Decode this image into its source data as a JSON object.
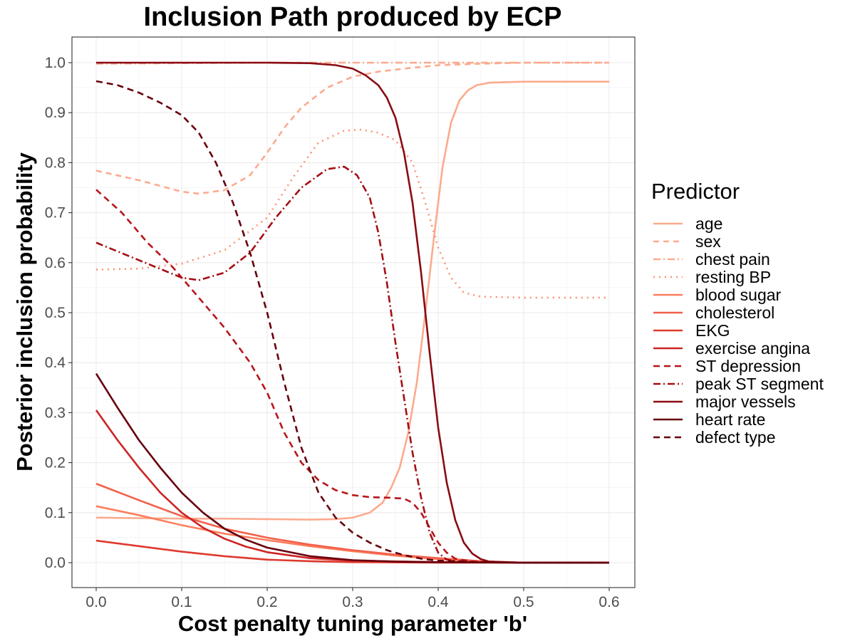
{
  "chart_data": {
    "type": "line",
    "title": "Inclusion Path produced by ECP",
    "xlabel": "Cost penalty tuning parameter 'b'",
    "ylabel": "Posterior inclusion probability",
    "xlim": [
      0,
      0.6
    ],
    "ylim": [
      0,
      1
    ],
    "x_ticks": [
      "0.0",
      "0.1",
      "0.2",
      "0.3",
      "0.4",
      "0.5",
      "0.6"
    ],
    "y_ticks": [
      "0.0",
      "0.1",
      "0.2",
      "0.3",
      "0.4",
      "0.5",
      "0.6",
      "0.7",
      "0.8",
      "0.9",
      "1.0"
    ],
    "grid": true,
    "legend_title": "Predictor",
    "legend_position": "right",
    "series": [
      {
        "name": "age",
        "color": "#fcaa8e",
        "dash": "solid",
        "points": [
          [
            0,
            0.09
          ],
          [
            0.05,
            0.089
          ],
          [
            0.1,
            0.088
          ],
          [
            0.15,
            0.088
          ],
          [
            0.2,
            0.087
          ],
          [
            0.25,
            0.086
          ],
          [
            0.28,
            0.087
          ],
          [
            0.3,
            0.09
          ],
          [
            0.32,
            0.1
          ],
          [
            0.335,
            0.12
          ],
          [
            0.345,
            0.15
          ],
          [
            0.355,
            0.19
          ],
          [
            0.365,
            0.26
          ],
          [
            0.375,
            0.36
          ],
          [
            0.385,
            0.5
          ],
          [
            0.395,
            0.65
          ],
          [
            0.405,
            0.79
          ],
          [
            0.415,
            0.88
          ],
          [
            0.425,
            0.925
          ],
          [
            0.435,
            0.945
          ],
          [
            0.445,
            0.955
          ],
          [
            0.46,
            0.96
          ],
          [
            0.5,
            0.962
          ],
          [
            0.6,
            0.962
          ]
        ]
      },
      {
        "name": "sex",
        "color": "#fcaa8e",
        "dash": "8,6",
        "points": [
          [
            0,
            0.784
          ],
          [
            0.05,
            0.765
          ],
          [
            0.1,
            0.742
          ],
          [
            0.12,
            0.738
          ],
          [
            0.15,
            0.745
          ],
          [
            0.18,
            0.775
          ],
          [
            0.2,
            0.82
          ],
          [
            0.22,
            0.87
          ],
          [
            0.24,
            0.91
          ],
          [
            0.27,
            0.95
          ],
          [
            0.3,
            0.972
          ],
          [
            0.33,
            0.982
          ],
          [
            0.36,
            0.988
          ],
          [
            0.4,
            0.995
          ],
          [
            0.45,
            0.998
          ],
          [
            0.5,
            1.0
          ],
          [
            0.6,
            1.0
          ]
        ]
      },
      {
        "name": "chest pain",
        "color": "#fcaa8e",
        "dash": "10,4,2,4",
        "points": [
          [
            0,
            0.998
          ],
          [
            0.1,
            0.999
          ],
          [
            0.2,
            1.0
          ],
          [
            0.3,
            1.0
          ],
          [
            0.4,
            1.0
          ],
          [
            0.5,
            1.0
          ],
          [
            0.6,
            1.0
          ]
        ]
      },
      {
        "name": "resting BP",
        "color": "#fc9272",
        "dash": "2,6",
        "points": [
          [
            0,
            0.586
          ],
          [
            0.05,
            0.588
          ],
          [
            0.1,
            0.598
          ],
          [
            0.15,
            0.625
          ],
          [
            0.2,
            0.69
          ],
          [
            0.23,
            0.77
          ],
          [
            0.26,
            0.84
          ],
          [
            0.29,
            0.864
          ],
          [
            0.31,
            0.866
          ],
          [
            0.33,
            0.86
          ],
          [
            0.35,
            0.845
          ],
          [
            0.37,
            0.8
          ],
          [
            0.385,
            0.72
          ],
          [
            0.4,
            0.63
          ],
          [
            0.415,
            0.57
          ],
          [
            0.43,
            0.54
          ],
          [
            0.45,
            0.532
          ],
          [
            0.5,
            0.53
          ],
          [
            0.6,
            0.53
          ]
        ]
      },
      {
        "name": "blood sugar",
        "color": "#fb7f5e",
        "dash": "solid",
        "points": [
          [
            0,
            0.113
          ],
          [
            0.05,
            0.095
          ],
          [
            0.1,
            0.075
          ],
          [
            0.15,
            0.058
          ],
          [
            0.2,
            0.045
          ],
          [
            0.25,
            0.033
          ],
          [
            0.3,
            0.023
          ],
          [
            0.35,
            0.014
          ],
          [
            0.4,
            0.007
          ],
          [
            0.45,
            0.002
          ],
          [
            0.5,
            0.0
          ],
          [
            0.6,
            0.0
          ]
        ]
      },
      {
        "name": "cholesterol",
        "color": "#f3604a",
        "dash": "solid",
        "points": [
          [
            0,
            0.158
          ],
          [
            0.05,
            0.125
          ],
          [
            0.1,
            0.093
          ],
          [
            0.15,
            0.068
          ],
          [
            0.2,
            0.05
          ],
          [
            0.25,
            0.036
          ],
          [
            0.3,
            0.025
          ],
          [
            0.35,
            0.016
          ],
          [
            0.4,
            0.009
          ],
          [
            0.45,
            0.003
          ],
          [
            0.5,
            0.0
          ],
          [
            0.6,
            0.0
          ]
        ]
      },
      {
        "name": "EKG",
        "color": "#de3a2f",
        "dash": "solid",
        "points": [
          [
            0,
            0.044
          ],
          [
            0.05,
            0.033
          ],
          [
            0.1,
            0.022
          ],
          [
            0.15,
            0.013
          ],
          [
            0.2,
            0.006
          ],
          [
            0.25,
            0.003
          ],
          [
            0.3,
            0.001
          ],
          [
            0.4,
            0.0
          ],
          [
            0.5,
            0.0
          ],
          [
            0.6,
            0.0
          ]
        ]
      },
      {
        "name": "exercise angina",
        "color": "#cc2424",
        "dash": "solid",
        "points": [
          [
            0,
            0.305
          ],
          [
            0.025,
            0.245
          ],
          [
            0.05,
            0.19
          ],
          [
            0.075,
            0.14
          ],
          [
            0.1,
            0.1
          ],
          [
            0.125,
            0.07
          ],
          [
            0.15,
            0.048
          ],
          [
            0.175,
            0.032
          ],
          [
            0.2,
            0.021
          ],
          [
            0.25,
            0.009
          ],
          [
            0.3,
            0.004
          ],
          [
            0.4,
            0.001
          ],
          [
            0.5,
            0.0
          ],
          [
            0.6,
            0.0
          ]
        ]
      },
      {
        "name": "ST depression",
        "color": "#b8151b",
        "dash": "9,6",
        "points": [
          [
            0,
            0.746
          ],
          [
            0.03,
            0.7
          ],
          [
            0.06,
            0.64
          ],
          [
            0.09,
            0.59
          ],
          [
            0.12,
            0.53
          ],
          [
            0.15,
            0.47
          ],
          [
            0.18,
            0.4
          ],
          [
            0.2,
            0.34
          ],
          [
            0.22,
            0.26
          ],
          [
            0.24,
            0.2
          ],
          [
            0.26,
            0.165
          ],
          [
            0.28,
            0.145
          ],
          [
            0.3,
            0.135
          ],
          [
            0.32,
            0.131
          ],
          [
            0.34,
            0.13
          ],
          [
            0.36,
            0.128
          ],
          [
            0.37,
            0.12
          ],
          [
            0.38,
            0.1
          ],
          [
            0.39,
            0.07
          ],
          [
            0.4,
            0.04
          ],
          [
            0.41,
            0.02
          ],
          [
            0.42,
            0.008
          ],
          [
            0.44,
            0.002
          ],
          [
            0.5,
            0.0
          ],
          [
            0.6,
            0.0
          ]
        ]
      },
      {
        "name": "peak ST segment",
        "color": "#a50f15",
        "dash": "10,4,2,4",
        "points": [
          [
            0,
            0.64
          ],
          [
            0.05,
            0.605
          ],
          [
            0.1,
            0.57
          ],
          [
            0.12,
            0.565
          ],
          [
            0.15,
            0.58
          ],
          [
            0.18,
            0.62
          ],
          [
            0.21,
            0.69
          ],
          [
            0.24,
            0.75
          ],
          [
            0.27,
            0.787
          ],
          [
            0.29,
            0.792
          ],
          [
            0.305,
            0.775
          ],
          [
            0.32,
            0.73
          ],
          [
            0.33,
            0.66
          ],
          [
            0.34,
            0.56
          ],
          [
            0.35,
            0.44
          ],
          [
            0.36,
            0.33
          ],
          [
            0.37,
            0.22
          ],
          [
            0.38,
            0.13
          ],
          [
            0.39,
            0.06
          ],
          [
            0.4,
            0.02
          ],
          [
            0.41,
            0.006
          ],
          [
            0.43,
            0.001
          ],
          [
            0.5,
            0.0
          ],
          [
            0.6,
            0.0
          ]
        ]
      },
      {
        "name": "major vessels",
        "color": "#8a0b13",
        "dash": "solid",
        "points": [
          [
            0,
            1.0
          ],
          [
            0.1,
            1.0
          ],
          [
            0.2,
            1.0
          ],
          [
            0.25,
            0.999
          ],
          [
            0.28,
            0.995
          ],
          [
            0.3,
            0.988
          ],
          [
            0.315,
            0.975
          ],
          [
            0.33,
            0.955
          ],
          [
            0.34,
            0.93
          ],
          [
            0.35,
            0.89
          ],
          [
            0.36,
            0.82
          ],
          [
            0.37,
            0.72
          ],
          [
            0.38,
            0.58
          ],
          [
            0.39,
            0.42
          ],
          [
            0.4,
            0.27
          ],
          [
            0.41,
            0.16
          ],
          [
            0.42,
            0.085
          ],
          [
            0.43,
            0.04
          ],
          [
            0.44,
            0.018
          ],
          [
            0.45,
            0.007
          ],
          [
            0.46,
            0.002
          ],
          [
            0.5,
            0.0
          ],
          [
            0.6,
            0.0
          ]
        ]
      },
      {
        "name": "heart rate",
        "color": "#67000d",
        "dash": "solid",
        "points": [
          [
            0,
            0.378
          ],
          [
            0.025,
            0.31
          ],
          [
            0.05,
            0.245
          ],
          [
            0.075,
            0.19
          ],
          [
            0.1,
            0.14
          ],
          [
            0.125,
            0.1
          ],
          [
            0.15,
            0.068
          ],
          [
            0.175,
            0.046
          ],
          [
            0.2,
            0.03
          ],
          [
            0.25,
            0.013
          ],
          [
            0.3,
            0.005
          ],
          [
            0.35,
            0.002
          ],
          [
            0.4,
            0.001
          ],
          [
            0.5,
            0.0
          ],
          [
            0.6,
            0.0
          ]
        ]
      },
      {
        "name": "defect type",
        "color": "#67000d",
        "dash": "9,6",
        "points": [
          [
            0,
            0.963
          ],
          [
            0.025,
            0.955
          ],
          [
            0.05,
            0.94
          ],
          [
            0.075,
            0.92
          ],
          [
            0.1,
            0.895
          ],
          [
            0.12,
            0.86
          ],
          [
            0.14,
            0.8
          ],
          [
            0.16,
            0.72
          ],
          [
            0.18,
            0.62
          ],
          [
            0.2,
            0.5
          ],
          [
            0.22,
            0.36
          ],
          [
            0.24,
            0.23
          ],
          [
            0.26,
            0.14
          ],
          [
            0.28,
            0.09
          ],
          [
            0.3,
            0.06
          ],
          [
            0.32,
            0.04
          ],
          [
            0.34,
            0.025
          ],
          [
            0.36,
            0.015
          ],
          [
            0.38,
            0.008
          ],
          [
            0.4,
            0.004
          ],
          [
            0.45,
            0.001
          ],
          [
            0.5,
            0.0
          ],
          [
            0.6,
            0.0
          ]
        ]
      }
    ]
  }
}
